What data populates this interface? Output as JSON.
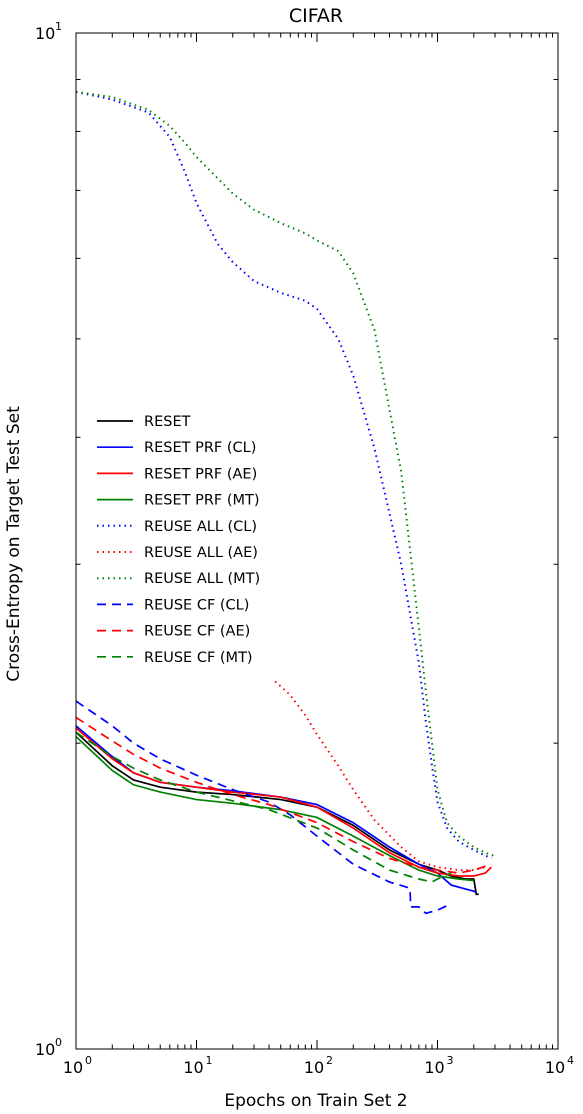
{
  "chart_data": {
    "type": "line",
    "title": "CIFAR",
    "xlabel": "Epochs on Train Set 2",
    "ylabel": "Cross-Entropy on Target Test Set",
    "xscale": "log",
    "yscale": "log",
    "xlim": [
      1,
      10000
    ],
    "ylim": [
      1,
      10
    ],
    "xticks": [
      {
        "value": 1,
        "base": "10",
        "exp": "0"
      },
      {
        "value": 10,
        "base": "10",
        "exp": "1"
      },
      {
        "value": 100,
        "base": "10",
        "exp": "2"
      },
      {
        "value": 1000,
        "base": "10",
        "exp": "3"
      },
      {
        "value": 10000,
        "base": "10",
        "exp": "4"
      }
    ],
    "yticks": [
      {
        "value": 1,
        "base": "10",
        "exp": "0"
      },
      {
        "value": 10,
        "base": "10",
        "exp": "1"
      }
    ],
    "legend_position": "center-left",
    "series": [
      {
        "name": "RESET",
        "color": "#000000",
        "style": "solid",
        "points": [
          [
            1,
            2.05
          ],
          [
            2,
            1.9
          ],
          [
            3,
            1.84
          ],
          [
            5,
            1.81
          ],
          [
            10,
            1.79
          ],
          [
            20,
            1.78
          ],
          [
            50,
            1.76
          ],
          [
            100,
            1.73
          ],
          [
            200,
            1.66
          ],
          [
            400,
            1.57
          ],
          [
            700,
            1.52
          ],
          [
            1000,
            1.5
          ],
          [
            1300,
            1.48
          ],
          [
            1700,
            1.47
          ],
          [
            2000,
            1.47
          ],
          [
            2100,
            1.42
          ],
          [
            2200,
            1.42
          ]
        ]
      },
      {
        "name": "RESET PRF (CL)",
        "color": "#0000ff",
        "style": "solid",
        "points": [
          [
            1,
            2.08
          ],
          [
            2,
            1.94
          ],
          [
            3,
            1.87
          ],
          [
            5,
            1.83
          ],
          [
            10,
            1.81
          ],
          [
            20,
            1.795
          ],
          [
            50,
            1.77
          ],
          [
            100,
            1.74
          ],
          [
            200,
            1.67
          ],
          [
            400,
            1.58
          ],
          [
            700,
            1.52
          ],
          [
            1000,
            1.49
          ],
          [
            1300,
            1.45
          ],
          [
            1600,
            1.44
          ],
          [
            2000,
            1.43
          ],
          [
            2100,
            1.425
          ]
        ]
      },
      {
        "name": "RESET PRF (AE)",
        "color": "#ff0000",
        "style": "solid",
        "points": [
          [
            1,
            2.07
          ],
          [
            2,
            1.93
          ],
          [
            3,
            1.87
          ],
          [
            5,
            1.83
          ],
          [
            10,
            1.81
          ],
          [
            20,
            1.79
          ],
          [
            50,
            1.77
          ],
          [
            100,
            1.73
          ],
          [
            200,
            1.65
          ],
          [
            400,
            1.56
          ],
          [
            700,
            1.51
          ],
          [
            1000,
            1.49
          ],
          [
            1500,
            1.48
          ],
          [
            2000,
            1.48
          ],
          [
            2500,
            1.49
          ],
          [
            2800,
            1.51
          ]
        ]
      },
      {
        "name": "RESET PRF (MT)",
        "color": "#008000",
        "style": "solid",
        "points": [
          [
            1,
            2.03
          ],
          [
            2,
            1.88
          ],
          [
            3,
            1.82
          ],
          [
            5,
            1.79
          ],
          [
            10,
            1.76
          ],
          [
            20,
            1.745
          ],
          [
            50,
            1.72
          ],
          [
            100,
            1.69
          ],
          [
            200,
            1.62
          ],
          [
            400,
            1.55
          ],
          [
            700,
            1.5
          ],
          [
            1000,
            1.48
          ],
          [
            1500,
            1.47
          ],
          [
            2000,
            1.465
          ]
        ]
      },
      {
        "name": "REUSE ALL (CL)",
        "color": "#0000ff",
        "style": "dotted",
        "points": [
          [
            1,
            8.75
          ],
          [
            2,
            8.6
          ],
          [
            4,
            8.35
          ],
          [
            6,
            7.9
          ],
          [
            8,
            7.3
          ],
          [
            10,
            6.8
          ],
          [
            15,
            6.2
          ],
          [
            20,
            5.95
          ],
          [
            30,
            5.7
          ],
          [
            50,
            5.55
          ],
          [
            80,
            5.45
          ],
          [
            100,
            5.35
          ],
          [
            150,
            5.0
          ],
          [
            200,
            4.6
          ],
          [
            300,
            3.9
          ],
          [
            500,
            3.0
          ],
          [
            700,
            2.4
          ],
          [
            800,
            2.1
          ],
          [
            900,
            1.9
          ],
          [
            1000,
            1.75
          ],
          [
            1200,
            1.65
          ],
          [
            1500,
            1.6
          ],
          [
            2000,
            1.57
          ],
          [
            2500,
            1.55
          ],
          [
            2800,
            1.54
          ]
        ]
      },
      {
        "name": "REUSE ALL (AE)",
        "color": "#ff0000",
        "style": "dotted",
        "points": [
          [
            45,
            2.3
          ],
          [
            60,
            2.23
          ],
          [
            80,
            2.13
          ],
          [
            100,
            2.04
          ],
          [
            150,
            1.9
          ],
          [
            200,
            1.8
          ],
          [
            300,
            1.68
          ],
          [
            500,
            1.58
          ],
          [
            700,
            1.53
          ],
          [
            1000,
            1.51
          ],
          [
            1500,
            1.5
          ],
          [
            2000,
            1.5
          ],
          [
            2500,
            1.51
          ]
        ]
      },
      {
        "name": "REUSE ALL (MT)",
        "color": "#008000",
        "style": "dotted",
        "points": [
          [
            1,
            8.75
          ],
          [
            2,
            8.65
          ],
          [
            4,
            8.4
          ],
          [
            6,
            8.1
          ],
          [
            8,
            7.8
          ],
          [
            10,
            7.55
          ],
          [
            20,
            6.95
          ],
          [
            30,
            6.7
          ],
          [
            50,
            6.5
          ],
          [
            80,
            6.35
          ],
          [
            100,
            6.25
          ],
          [
            150,
            6.1
          ],
          [
            200,
            5.8
          ],
          [
            300,
            5.1
          ],
          [
            500,
            3.7
          ],
          [
            700,
            2.6
          ],
          [
            800,
            2.25
          ],
          [
            900,
            2.0
          ],
          [
            1000,
            1.8
          ],
          [
            1200,
            1.67
          ],
          [
            1500,
            1.62
          ],
          [
            2000,
            1.58
          ],
          [
            2500,
            1.56
          ],
          [
            2900,
            1.55
          ]
        ]
      },
      {
        "name": "REUSE CF (CL)",
        "color": "#0000ff",
        "style": "dashed",
        "points": [
          [
            1,
            2.2
          ],
          [
            2,
            2.08
          ],
          [
            3,
            2.0
          ],
          [
            5,
            1.93
          ],
          [
            10,
            1.86
          ],
          [
            20,
            1.8
          ],
          [
            40,
            1.75
          ],
          [
            60,
            1.7
          ],
          [
            100,
            1.62
          ],
          [
            200,
            1.52
          ],
          [
            400,
            1.46
          ],
          [
            590,
            1.44
          ],
          [
            600,
            1.38
          ],
          [
            700,
            1.38
          ],
          [
            800,
            1.36
          ],
          [
            1000,
            1.37
          ],
          [
            1300,
            1.39
          ]
        ]
      },
      {
        "name": "REUSE CF (AE)",
        "color": "#ff0000",
        "style": "dashed",
        "points": [
          [
            1,
            2.12
          ],
          [
            2,
            2.01
          ],
          [
            3,
            1.95
          ],
          [
            5,
            1.89
          ],
          [
            10,
            1.83
          ],
          [
            20,
            1.78
          ],
          [
            40,
            1.74
          ],
          [
            100,
            1.67
          ],
          [
            200,
            1.6
          ],
          [
            400,
            1.54
          ],
          [
            700,
            1.51
          ],
          [
            1000,
            1.5
          ],
          [
            1500,
            1.49
          ],
          [
            2000,
            1.5
          ],
          [
            2800,
            1.52
          ]
        ]
      },
      {
        "name": "REUSE CF (MT)",
        "color": "#008000",
        "style": "dashed",
        "points": [
          [
            1,
            2.05
          ],
          [
            2,
            1.94
          ],
          [
            3,
            1.89
          ],
          [
            5,
            1.84
          ],
          [
            10,
            1.79
          ],
          [
            20,
            1.755
          ],
          [
            40,
            1.72
          ],
          [
            100,
            1.65
          ],
          [
            200,
            1.57
          ],
          [
            400,
            1.5
          ],
          [
            700,
            1.47
          ],
          [
            900,
            1.46
          ],
          [
            1000,
            1.47
          ],
          [
            1300,
            1.49
          ]
        ]
      }
    ]
  }
}
